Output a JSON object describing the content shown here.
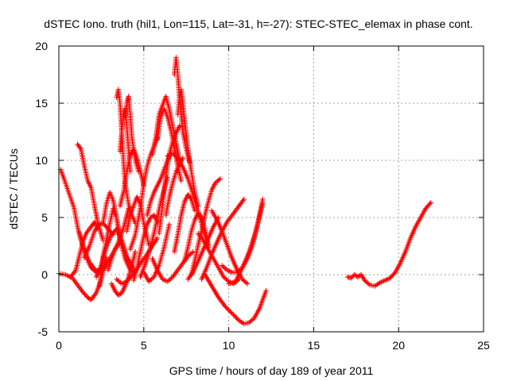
{
  "chart_data": {
    "type": "line",
    "title": "dSTEC Iono. truth (hil1, Lon=115, Lat=-31, h=-27): STEC-STEC_elemax in phase cont.",
    "xlabel": "GPS time / hours of day 189 of year 2011",
    "ylabel": "dSTEC  / TECUs",
    "xlim": [
      0,
      25
    ],
    "ylim": [
      -5,
      20
    ],
    "xticks": [
      "0",
      "5",
      "10",
      "15",
      "20",
      "25"
    ],
    "yticks": [
      "-5",
      "0",
      "5",
      "10",
      "15",
      "20"
    ],
    "grid": true,
    "marker": "+",
    "color": "#ff0000",
    "series": [
      {
        "x": [
          0.0,
          0.4,
          0.8,
          1.1,
          1.4,
          1.7,
          1.9,
          2.2,
          2.5,
          2.8
        ],
        "y": [
          0.1,
          0.0,
          -0.3,
          -0.9,
          -1.5,
          -2.0,
          -2.2,
          -1.6,
          -0.4,
          1.5
        ]
      },
      {
        "x": [
          0.1,
          0.3,
          0.6,
          0.9,
          1.1,
          1.3,
          1.6,
          1.9,
          2.2,
          2.5
        ],
        "y": [
          9.2,
          8.4,
          7.1,
          5.8,
          4.2,
          3.0,
          1.6,
          0.6,
          0.2,
          0.6
        ]
      },
      {
        "x": [
          0.7,
          1.0,
          1.2,
          1.4,
          1.6,
          1.9,
          2.1,
          2.3
        ],
        "y": [
          -0.2,
          0.4,
          1.6,
          2.8,
          3.6,
          4.2,
          4.6,
          4.0
        ]
      },
      {
        "x": [
          1.1,
          1.3,
          1.5,
          1.7,
          1.9,
          2.1,
          2.3,
          2.6
        ],
        "y": [
          11.4,
          11.0,
          9.5,
          8.2,
          7.6,
          6.0,
          4.5,
          3.0
        ]
      },
      {
        "x": [
          1.2,
          1.5,
          1.8,
          2.1,
          2.4,
          2.7,
          3.0,
          3.3,
          3.7
        ],
        "y": [
          3.7,
          2.2,
          1.1,
          0.5,
          0.2,
          0.6,
          1.4,
          2.2,
          3.0
        ]
      },
      {
        "x": [
          1.5,
          1.8,
          2.1,
          2.4,
          2.6,
          2.9,
          3.2
        ],
        "y": [
          1.5,
          2.5,
          3.8,
          4.4,
          4.5,
          4.0,
          3.5
        ]
      },
      {
        "x": [
          2.2,
          2.5,
          2.8,
          3.1,
          3.4,
          3.7,
          4.0,
          4.4
        ],
        "y": [
          -0.2,
          0.8,
          2.4,
          3.5,
          4.0,
          3.0,
          1.6,
          0.5
        ]
      },
      {
        "x": [
          2.4,
          2.6,
          2.8,
          3.0,
          3.2,
          3.4,
          3.6,
          3.9,
          4.1
        ],
        "y": [
          -1.0,
          1.6,
          3.0,
          4.5,
          5.8,
          5.0,
          3.4,
          2.0,
          1.2
        ]
      },
      {
        "x": [
          2.6,
          2.8,
          3.0,
          3.2,
          3.4,
          3.6,
          3.9,
          4.2,
          4.5
        ],
        "y": [
          4.5,
          6.2,
          7.2,
          6.5,
          5.0,
          3.0,
          1.4,
          0.4,
          0.2
        ]
      },
      {
        "x": [
          2.9,
          3.1,
          3.3,
          3.5,
          3.7,
          3.9,
          4.1
        ],
        "y": [
          0.4,
          1.4,
          2.2,
          2.8,
          3.6,
          4.6,
          5.8
        ]
      },
      {
        "x": [
          3.1,
          3.3,
          3.5,
          3.7,
          3.9,
          4.1,
          4.3,
          4.5
        ],
        "y": [
          -0.8,
          -1.4,
          -1.8,
          -1.6,
          -1.0,
          -0.2,
          0.8,
          2.0
        ]
      },
      {
        "x": [
          3.4,
          3.5,
          3.6,
          3.7,
          3.8,
          3.9,
          4.1,
          4.3,
          4.5
        ],
        "y": [
          15.5,
          16.2,
          15.0,
          12.5,
          10.0,
          8.0,
          6.2,
          5.2,
          4.5
        ]
      },
      {
        "x": [
          3.6,
          3.7,
          3.8,
          3.9,
          4.0,
          4.1,
          4.2
        ],
        "y": [
          10.8,
          12.5,
          14.0,
          14.5,
          13.0,
          11.0,
          9.0
        ]
      },
      {
        "x": [
          3.9,
          4.0,
          4.1,
          4.2,
          4.3,
          4.5,
          4.7
        ],
        "y": [
          13.8,
          15.0,
          15.6,
          14.0,
          12.0,
          10.0,
          9.0
        ]
      },
      {
        "x": [
          3.4,
          3.7,
          4.0,
          4.3,
          4.6,
          4.9,
          5.2,
          5.5,
          5.8
        ],
        "y": [
          -0.4,
          -0.8,
          -0.6,
          -0.1,
          0.5,
          1.2,
          1.8,
          2.5,
          3.2
        ]
      },
      {
        "x": [
          3.6,
          3.8,
          4.0,
          4.2,
          4.4,
          4.6,
          4.8,
          5.0
        ],
        "y": [
          6.0,
          7.2,
          9.0,
          10.4,
          11.0,
          10.2,
          9.0,
          7.8
        ]
      },
      {
        "x": [
          4.2,
          4.5,
          4.8,
          5.0,
          5.2,
          5.4,
          5.6,
          5.8
        ],
        "y": [
          2.2,
          3.5,
          5.8,
          8.0,
          9.5,
          10.5,
          11.2,
          12.0
        ]
      },
      {
        "x": [
          4.0,
          4.2,
          4.4,
          4.6,
          4.8,
          5.0,
          5.3
        ],
        "y": [
          3.8,
          5.2,
          6.0,
          6.8,
          6.2,
          4.5,
          2.6
        ]
      },
      {
        "x": [
          4.4,
          4.6,
          4.8,
          5.0,
          5.2,
          5.4,
          5.6,
          5.8
        ],
        "y": [
          -0.5,
          0.6,
          2.0,
          3.4,
          4.4,
          5.0,
          5.2,
          4.6
        ]
      },
      {
        "x": [
          4.8,
          5.0,
          5.2,
          5.4,
          5.6,
          5.8,
          6.0,
          6.2,
          6.4
        ],
        "y": [
          -0.2,
          0.6,
          1.4,
          2.4,
          3.6,
          5.0,
          6.4,
          7.5,
          8.5
        ]
      },
      {
        "x": [
          5.0,
          5.3,
          5.6,
          5.9,
          6.2,
          6.5
        ],
        "y": [
          0.2,
          -0.6,
          -0.2,
          0.8,
          2.4,
          4.4
        ]
      },
      {
        "x": [
          5.2,
          5.4,
          5.6,
          5.8,
          6.0,
          6.2,
          6.4,
          6.6
        ],
        "y": [
          5.2,
          6.4,
          7.2,
          7.8,
          8.4,
          9.2,
          10.0,
          10.6
        ]
      },
      {
        "x": [
          5.5,
          5.7,
          5.9,
          6.1,
          6.3,
          6.5,
          6.7,
          6.9,
          7.1
        ],
        "y": [
          10.5,
          12.0,
          14.0,
          14.8,
          15.6,
          14.5,
          13.0,
          11.5,
          10.0
        ]
      },
      {
        "x": [
          5.8,
          6.0,
          6.2,
          6.4,
          6.6,
          6.8,
          7.0,
          7.2
        ],
        "y": [
          11.8,
          13.8,
          14.5,
          13.8,
          12.6,
          11.0,
          9.5,
          8.2
        ]
      },
      {
        "x": [
          5.5,
          5.8,
          6.1,
          6.4,
          6.7,
          7.0,
          7.3,
          7.6,
          7.9
        ],
        "y": [
          1.4,
          0.4,
          -0.4,
          -0.6,
          -0.2,
          0.4,
          1.0,
          1.6,
          2.0
        ]
      },
      {
        "x": [
          5.9,
          6.1,
          6.3,
          6.5,
          6.7,
          6.9,
          7.1
        ],
        "y": [
          3.6,
          6.0,
          8.6,
          10.6,
          11.6,
          12.4,
          13.0
        ]
      },
      {
        "x": [
          6.3,
          6.5,
          6.7,
          6.9,
          7.1,
          7.3
        ],
        "y": [
          5.2,
          6.8,
          8.0,
          9.0,
          9.6,
          10.2
        ]
      },
      {
        "x": [
          6.8,
          6.9,
          7.0,
          7.1,
          7.2,
          7.3,
          7.5,
          7.7
        ],
        "y": [
          17.5,
          19.0,
          17.5,
          15.5,
          14.0,
          12.5,
          11.0,
          9.8
        ]
      },
      {
        "x": [
          7.0,
          7.1,
          7.2,
          7.3,
          7.4,
          7.6,
          7.8,
          8.0,
          8.2
        ],
        "y": [
          14.0,
          15.5,
          16.2,
          15.0,
          13.5,
          11.0,
          9.0,
          7.2,
          6.0
        ]
      },
      {
        "x": [
          6.4,
          6.7,
          7.0,
          7.3,
          7.6,
          7.9,
          8.2,
          8.5,
          8.8
        ],
        "y": [
          10.4,
          10.6,
          10.2,
          9.4,
          8.4,
          7.0,
          5.5,
          4.0,
          2.4
        ]
      },
      {
        "x": [
          6.8,
          7.0,
          7.2,
          7.4,
          7.6,
          7.8,
          8.0
        ],
        "y": [
          2.0,
          3.5,
          5.2,
          6.4,
          7.0,
          6.6,
          5.6
        ]
      },
      {
        "x": [
          7.4,
          7.6,
          7.8,
          8.0,
          8.2,
          8.4,
          8.6,
          8.8
        ],
        "y": [
          1.2,
          2.4,
          3.8,
          4.8,
          5.4,
          5.0,
          4.0,
          2.6
        ]
      },
      {
        "x": [
          7.6,
          7.9,
          8.2,
          8.5,
          8.8,
          9.1,
          9.4
        ],
        "y": [
          -0.4,
          0.2,
          1.2,
          2.2,
          3.2,
          4.2,
          5.0
        ]
      },
      {
        "x": [
          7.8,
          8.0,
          8.2,
          8.4,
          8.6,
          8.8,
          9.0,
          9.2,
          9.5
        ],
        "y": [
          0.0,
          1.2,
          2.6,
          3.8,
          5.2,
          6.4,
          7.4,
          8.0,
          8.4
        ]
      },
      {
        "x": [
          8.2,
          8.5,
          8.8,
          9.1,
          9.4,
          9.7,
          10.0,
          10.3,
          10.6
        ],
        "y": [
          3.6,
          3.0,
          2.2,
          1.4,
          0.6,
          -0.2,
          -0.6,
          -0.8,
          -0.4
        ]
      },
      {
        "x": [
          8.4,
          8.7,
          9.0,
          9.3,
          9.6,
          9.9,
          10.2,
          10.5,
          10.9
        ],
        "y": [
          -0.4,
          0.6,
          1.8,
          2.8,
          3.8,
          4.6,
          5.2,
          5.8,
          6.6
        ]
      },
      {
        "x": [
          9.0,
          9.3,
          9.6,
          9.9,
          10.2,
          10.5,
          10.8,
          11.1
        ],
        "y": [
          5.6,
          4.8,
          3.8,
          2.6,
          1.4,
          0.4,
          -0.4,
          -0.8
        ]
      },
      {
        "x": [
          9.6,
          9.9,
          10.2,
          10.5,
          10.8,
          11.1,
          11.4,
          11.7,
          12.0
        ],
        "y": [
          0.8,
          0.4,
          0.2,
          0.2,
          0.6,
          1.4,
          2.6,
          4.4,
          6.6
        ]
      },
      {
        "x": [
          8.6,
          9.0,
          9.4,
          9.8,
          10.2,
          10.6,
          10.9,
          11.2,
          11.5,
          11.8,
          12.0,
          12.2
        ],
        "y": [
          0.0,
          -1.0,
          -2.0,
          -2.8,
          -3.4,
          -4.0,
          -4.3,
          -4.2,
          -3.8,
          -3.0,
          -2.2,
          -1.4
        ]
      },
      {
        "x": [
          10.0,
          10.4,
          10.8,
          11.2,
          11.6,
          12.0
        ],
        "y": [
          -0.8,
          -0.6,
          0.6,
          2.0,
          3.8,
          6.2
        ]
      },
      {
        "x": [
          17.0,
          17.2,
          17.4,
          17.6,
          17.8,
          18.0,
          18.3,
          18.6,
          18.9,
          19.2,
          19.5,
          19.8,
          20.1,
          20.4,
          20.7,
          21.0,
          21.3,
          21.6,
          21.9
        ],
        "y": [
          -0.2,
          -0.3,
          0.0,
          -0.2,
          0.0,
          -0.5,
          -0.9,
          -1.0,
          -0.7,
          -0.5,
          -0.3,
          0.2,
          1.0,
          2.0,
          3.2,
          4.2,
          5.0,
          5.8,
          6.3
        ]
      }
    ]
  }
}
